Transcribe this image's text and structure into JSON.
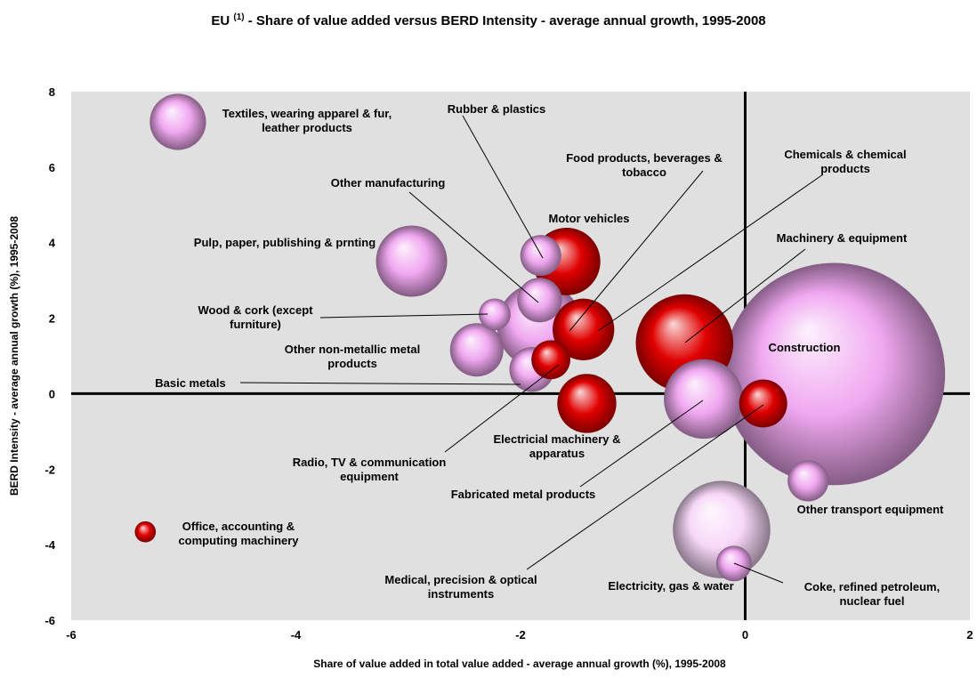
{
  "chart_data": {
    "type": "bubble",
    "title_prefix": "EU",
    "title_note": "(1)",
    "title": "- Share of value added versus BERD Intensity - average annual growth, 1995-2008",
    "x_label": "Share of value added in total value added - average annual growth (%), 1995-2008",
    "y_label": "BERD Intensity - average annual growth (%), 1995-2008",
    "xlim": [
      -6,
      2
    ],
    "xticks": [
      -6,
      -4,
      -2,
      0,
      2
    ],
    "ylim": [
      -6,
      8
    ],
    "yticks": [
      -6,
      -4,
      -2,
      0,
      2,
      4,
      6,
      8
    ],
    "points": [
      {
        "name": "Construction",
        "x": 0.79,
        "y": 0.52,
        "size": 156,
        "color": "#f0a8f0"
      },
      {
        "name": "Electricity, gas & water",
        "x": -0.21,
        "y": -3.6,
        "size": 30,
        "color": "#f8d8f8"
      },
      {
        "name": "Machinery & equipment",
        "x": -0.54,
        "y": 1.34,
        "size": 30,
        "color": "#e00000"
      },
      {
        "name": "Food products, beverages & tobacco",
        "x": -1.83,
        "y": 1.8,
        "size": 23,
        "color": "#f0a8f0"
      },
      {
        "name": "Fabricated metal products",
        "x": -0.37,
        "y": -0.14,
        "size": 20,
        "color": "#f0a8f0"
      },
      {
        "name": "Pulp, paper, publishing & prnting",
        "x": -2.97,
        "y": 3.51,
        "size": 16,
        "color": "#f0a8f0"
      },
      {
        "name": "Motor vehicles",
        "x": -1.59,
        "y": 3.5,
        "size": 14.4,
        "color": "#e00000"
      },
      {
        "name": "Chemicals & chemical products",
        "x": -1.44,
        "y": 1.7,
        "size": 12,
        "color": "#e00000"
      },
      {
        "name": "Electricial machinery & apparatus",
        "x": -1.41,
        "y": -0.26,
        "size": 11,
        "color": "#e00000"
      },
      {
        "name": "Textiles, wearing apparel & fur, leather products",
        "x": -5.05,
        "y": 7.2,
        "size": 10,
        "color": "#f0a8f0"
      },
      {
        "name": "Other non-metallic metal products",
        "x": -2.39,
        "y": 1.16,
        "size": 9,
        "color": "#f0a8f0"
      },
      {
        "name": "Medical, precision & optical instruments",
        "x": 0.16,
        "y": -0.26,
        "size": 7.3,
        "color": "#e00000"
      },
      {
        "name": "Basic metals",
        "x": -1.9,
        "y": 0.64,
        "size": 6.3,
        "color": "#f0a8f0"
      },
      {
        "name": "Other manufacturing",
        "x": -1.83,
        "y": 2.48,
        "size": 6.3,
        "color": "#f0a8f0"
      },
      {
        "name": "Rubber & plastics",
        "x": -1.82,
        "y": 3.66,
        "size": 5.3,
        "color": "#f0a8f0"
      },
      {
        "name": "Radio, TV & communication equipment",
        "x": -1.73,
        "y": 0.9,
        "size": 4.8,
        "color": "#e00000"
      },
      {
        "name": "Other transport equipment",
        "x": 0.56,
        "y": -2.31,
        "size": 5.3,
        "color": "#f0a8f0"
      },
      {
        "name": "Coke, refined petroleum, nuclear fuel",
        "x": -0.1,
        "y": -4.5,
        "size": 4,
        "color": "#f0a8f0"
      },
      {
        "name": "Wood & cork (except furniture)",
        "x": -2.23,
        "y": 2.1,
        "size": 3.2,
        "color": "#f0a8f0"
      },
      {
        "name": "Office, accounting & computing machinery",
        "x": -5.34,
        "y": -3.66,
        "size": 1.4,
        "color": "#e00000"
      }
    ]
  }
}
